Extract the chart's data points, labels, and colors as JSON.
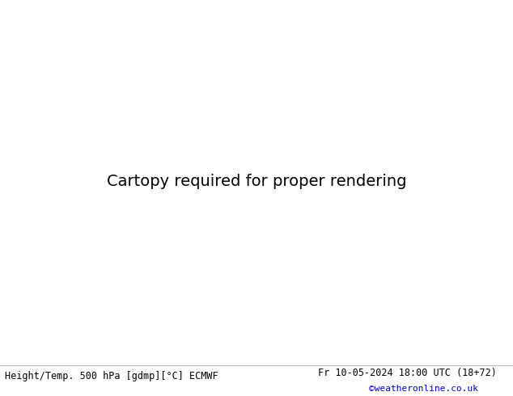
{
  "title_left": "Height/Temp. 500 hPa [gdmp][°C] ECMWF",
  "title_right": "Fr 10-05-2024 18:00 UTC (18+72)",
  "credit": "©weatheronline.co.uk",
  "background_color": "#ffffff",
  "ocean_color": "#d8d8d8",
  "land_color": "#d8d8d8",
  "green_fill_color": "#c8e8a0",
  "height_contour_color": "#000000",
  "temp_red_color": "#dd0000",
  "temp_orange_color": "#ff8800",
  "border_color": "#aaaaaa",
  "coast_color": "#666666",
  "fig_width": 6.34,
  "fig_height": 4.9,
  "dpi": 100,
  "extent": [
    -20,
    75,
    -40,
    45
  ],
  "font_size_bottom": 8.5,
  "font_size_credit": 8,
  "credit_color": "#0000cc"
}
